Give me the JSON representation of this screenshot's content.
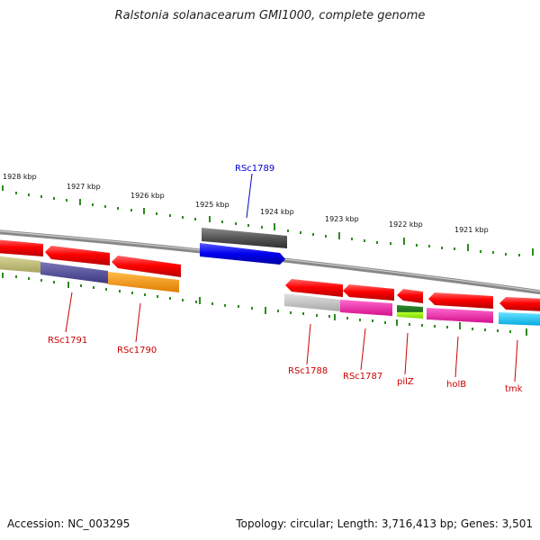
{
  "title": "Ralstonia solanacearum GMI1000, complete genome",
  "footer": {
    "accession": "Accession: NC_003295",
    "summary": "Topology: circular; Length: 3,716,413 bp; Genes: 3,501"
  },
  "scale_labels": [
    "1928 kbp",
    "1927 kbp",
    "1926 kbp",
    "1925 kbp",
    "1924 kbp",
    "1923 kbp",
    "1922 kbp",
    "1921 kbp"
  ],
  "gene_labels": [
    "RSc1789",
    "RSc1791",
    "RSc1790",
    "RSc1788",
    "RSc1787",
    "pilZ",
    "holB",
    "tmk"
  ],
  "colors": {
    "highlight_label": "#0000cc",
    "gene_label": "#cc0000",
    "tick": "#2e8b1e",
    "backbone": "#8a8a8a"
  }
}
